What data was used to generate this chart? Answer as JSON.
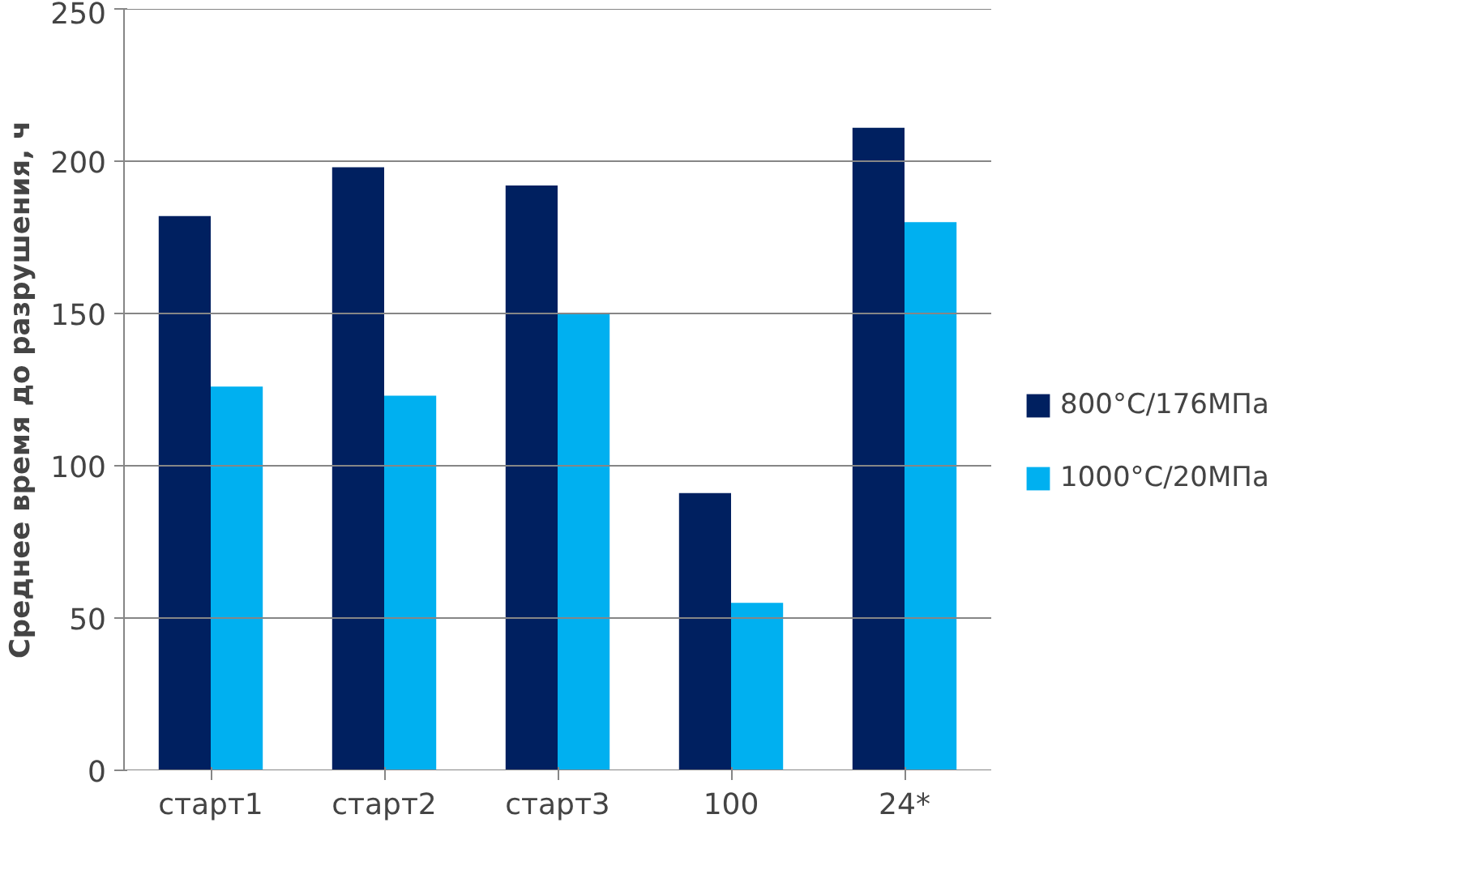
{
  "chart_data": {
    "type": "bar",
    "ylabel": "Среднее время до разрушения, ч",
    "categories": [
      "старт1",
      "старт2",
      "старт3",
      "100",
      "24*"
    ],
    "series": [
      {
        "name": "800°C/176МПа",
        "color": "#002060",
        "values": [
          182,
          198,
          192,
          91,
          211
        ]
      },
      {
        "name": "1000°C/20МПа",
        "color": "#00b0f0",
        "values": [
          126,
          123,
          150,
          55,
          180
        ]
      }
    ],
    "ylim": [
      0,
      250
    ],
    "yticks": [
      0,
      50,
      100,
      150,
      200,
      250
    ],
    "grid": "y",
    "legend": "right"
  }
}
